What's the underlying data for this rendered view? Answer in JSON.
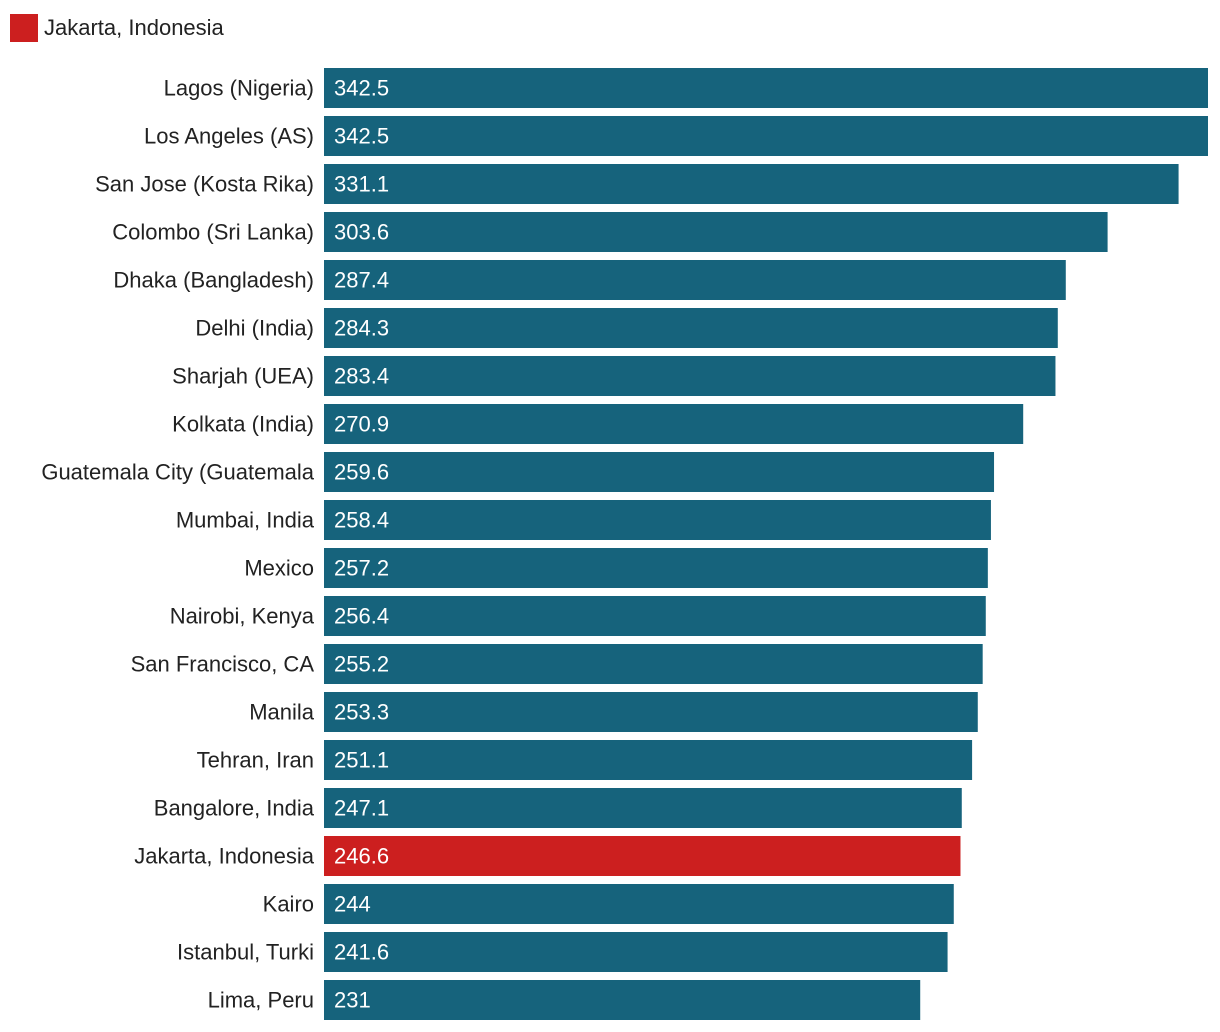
{
  "legend": {
    "items": [
      {
        "label": "Jakarta, Indonesia",
        "color": "#cc1f1f"
      }
    ]
  },
  "colors": {
    "default_bar": "#16637c",
    "highlight_bar": "#cc1f1f"
  },
  "chart_data": {
    "type": "bar",
    "orientation": "horizontal",
    "title": "",
    "xlabel": "",
    "ylabel": "",
    "grid": false,
    "legend_position": "top-left",
    "xlim": [
      0,
      342.5
    ],
    "highlight": "Jakarta, Indonesia",
    "categories": [
      "Lagos (Nigeria)",
      "Los Angeles (AS)",
      "San Jose (Kosta Rika)",
      "Colombo (Sri Lanka)",
      "Dhaka (Bangladesh)",
      "Delhi (India)",
      "Sharjah (UEA)",
      "Kolkata (India)",
      "Guatemala City (Guatemala",
      "Mumbai, India",
      "Mexico",
      "Nairobi, Kenya",
      "San Francisco, CA",
      "Manila",
      "Tehran, Iran",
      "Bangalore, India",
      "Jakarta, Indonesia",
      "Kairo",
      "Istanbul, Turki",
      "Lima, Peru"
    ],
    "values": [
      342.5,
      342.5,
      331.1,
      303.6,
      287.4,
      284.3,
      283.4,
      270.9,
      259.6,
      258.4,
      257.2,
      256.4,
      255.2,
      253.3,
      251.1,
      247.1,
      246.6,
      244,
      241.6,
      231
    ],
    "value_labels": [
      "342.5",
      "342.5",
      "331.1",
      "303.6",
      "287.4",
      "284.3",
      "283.4",
      "270.9",
      "259.6",
      "258.4",
      "257.2",
      "256.4",
      "255.2",
      "253.3",
      "251.1",
      "247.1",
      "246.6",
      "244",
      "241.6",
      "231"
    ]
  }
}
